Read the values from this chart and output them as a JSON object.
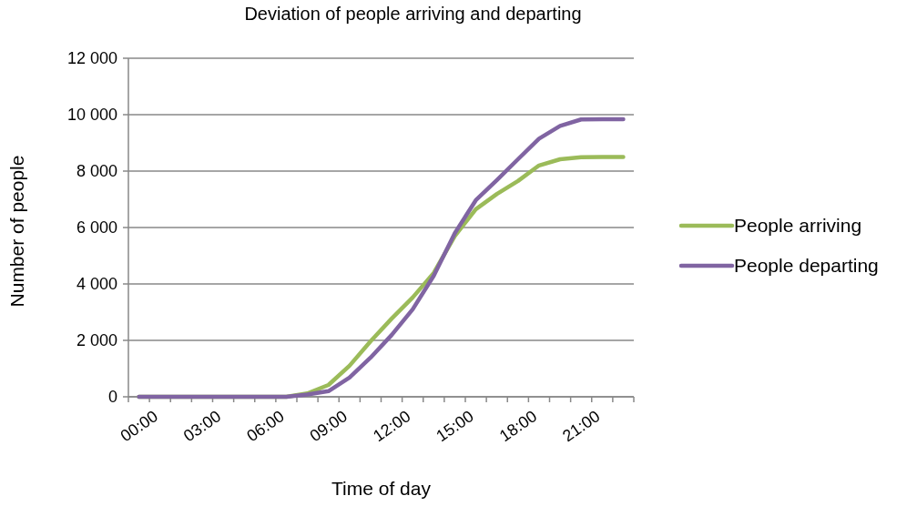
{
  "chart_data": {
    "type": "line",
    "title": "Deviation of people arriving and departing",
    "xlabel": "Time of day",
    "ylabel": "Number of people",
    "categories": [
      "00:00",
      null,
      null,
      "03:00",
      null,
      null,
      "06:00",
      null,
      null,
      "09:00",
      null,
      null,
      "12:00",
      null,
      null,
      "15:00",
      null,
      null,
      "18:00",
      null,
      null,
      "21:00",
      null,
      null
    ],
    "series": [
      {
        "name": "People arriving",
        "color": "#9bbb59",
        "values": [
          0,
          0,
          0,
          0,
          0,
          0,
          0,
          0,
          120,
          420,
          1100,
          1970,
          2770,
          3520,
          4390,
          5700,
          6650,
          7190,
          7650,
          8200,
          8420,
          8490,
          8500,
          8500
        ]
      },
      {
        "name": "People departing",
        "color": "#8064a2",
        "values": [
          0,
          0,
          0,
          0,
          0,
          0,
          0,
          0,
          80,
          200,
          680,
          1390,
          2190,
          3100,
          4290,
          5800,
          6970,
          7680,
          8420,
          9150,
          9600,
          9830,
          9840,
          9840
        ]
      }
    ],
    "ylim": [
      0,
      12000
    ],
    "yticks": [
      {
        "value": 0,
        "label": "0"
      },
      {
        "value": 2000,
        "label": "2 000"
      },
      {
        "value": 4000,
        "label": "4 000"
      },
      {
        "value": 6000,
        "label": "6 000"
      },
      {
        "value": 8000,
        "label": "8 000"
      },
      {
        "value": 10000,
        "label": "10 000"
      },
      {
        "value": 12000,
        "label": "12 000"
      }
    ],
    "grid": "y",
    "legend": "right",
    "marker": "none",
    "line_style": "solid"
  }
}
